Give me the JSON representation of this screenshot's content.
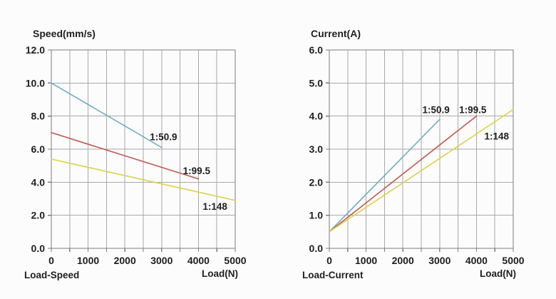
{
  "page": {
    "background": "#fcfcfc"
  },
  "colors": {
    "blue": "#73b0c8",
    "red": "#c2605a",
    "yellow": "#e0d24e",
    "grid": "#a9a9a9",
    "axis": "#7d7d7d",
    "text": "#1e1e1e"
  },
  "chart_data": [
    {
      "type": "line",
      "title": "Speed(mm/s)",
      "corner_label": "Load-Speed",
      "xlabel": "Load(N)",
      "ylabel": "Speed(mm/s)",
      "xlim": [
        0,
        5000
      ],
      "ylim": [
        0,
        12
      ],
      "x_minor_step": 500,
      "grid": true,
      "x_ticks": [
        0,
        1000,
        2000,
        3000,
        4000,
        5000
      ],
      "x_tick_labels": [
        "0",
        "1000",
        "2000",
        "3000",
        "4000",
        "5000"
      ],
      "y_ticks": [
        0,
        2,
        4,
        6,
        8,
        10,
        12
      ],
      "y_tick_labels": [
        "0.0",
        "2.0",
        "4.0",
        "6.0",
        "8.0",
        "10.0",
        "12.0"
      ],
      "series": [
        {
          "name": "1:50.9",
          "color_key": "blue",
          "points": [
            [
              0,
              10.0
            ],
            [
              3000,
              6.1
            ]
          ],
          "label_pos": [
            3050,
            6.75
          ]
        },
        {
          "name": "1:99.5",
          "color_key": "red",
          "points": [
            [
              0,
              7.0
            ],
            [
              4000,
              4.2
            ]
          ],
          "label_pos": [
            3950,
            4.7
          ]
        },
        {
          "name": "1:148",
          "color_key": "yellow",
          "points": [
            [
              0,
              5.4
            ],
            [
              5000,
              2.9
            ]
          ],
          "label_pos": [
            4450,
            2.55
          ]
        }
      ]
    },
    {
      "type": "line",
      "title": "Current(A)",
      "corner_label": "Load-Current",
      "xlabel": "Load(N)",
      "ylabel": "Current(A)",
      "xlim": [
        0,
        5000
      ],
      "ylim": [
        0,
        6
      ],
      "x_minor_step": 500,
      "grid": true,
      "x_ticks": [
        0,
        1000,
        2000,
        3000,
        4000,
        5000
      ],
      "x_tick_labels": [
        "0",
        "1000",
        "2000",
        "3000",
        "4000",
        "5000"
      ],
      "y_ticks": [
        0,
        1,
        2,
        3,
        4,
        5,
        6
      ],
      "y_tick_labels": [
        "0.0",
        "1.0",
        "2.0",
        "3.0",
        "4.0",
        "5.0",
        "6.0"
      ],
      "series": [
        {
          "name": "1:50.9",
          "color_key": "blue",
          "points": [
            [
              0,
              0.5
            ],
            [
              3000,
              3.9
            ]
          ],
          "label_pos": [
            2900,
            4.2
          ]
        },
        {
          "name": "1:99.5",
          "color_key": "red",
          "points": [
            [
              0,
              0.5
            ],
            [
              4000,
              4.0
            ]
          ],
          "label_pos": [
            3900,
            4.2
          ]
        },
        {
          "name": "1:148",
          "color_key": "yellow",
          "points": [
            [
              0,
              0.5
            ],
            [
              5000,
              4.2
            ]
          ],
          "label_pos": [
            4550,
            3.4
          ]
        }
      ]
    }
  ]
}
